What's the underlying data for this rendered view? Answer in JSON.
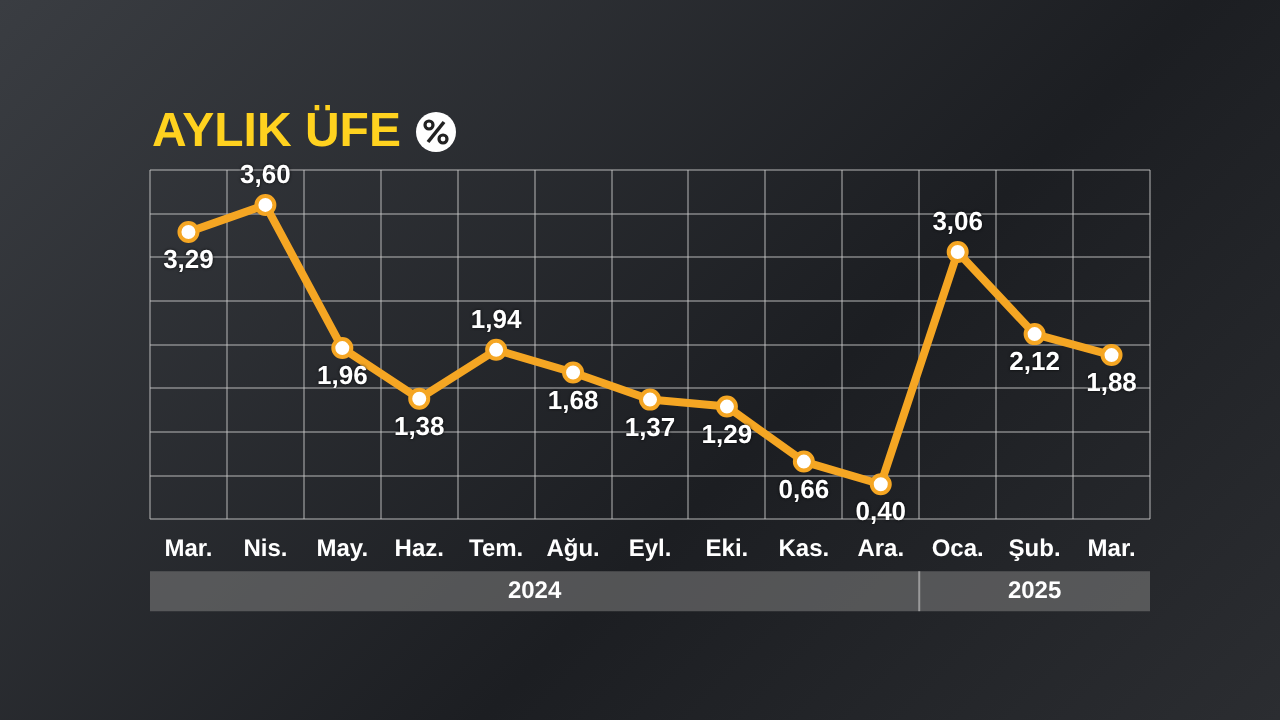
{
  "chart_data": {
    "type": "line",
    "title": "AYLIK ÜFE",
    "categories": [
      "Mar.",
      "Nis.",
      "May.",
      "Haz.",
      "Tem.",
      "Ağu.",
      "Eyl.",
      "Eki.",
      "Kas.",
      "Ara.",
      "Oca.",
      "Şub.",
      "Mar."
    ],
    "series": [
      {
        "color": "#f5a623",
        "values": [
          3.29,
          3.6,
          1.96,
          1.38,
          1.94,
          1.68,
          1.37,
          1.29,
          0.66,
          0.4,
          3.06,
          2.12,
          1.88
        ],
        "value_labels": [
          "3,29",
          "3,60",
          "1,96",
          "1,38",
          "1,94",
          "1,68",
          "1,37",
          "1,29",
          "0,66",
          "0,40",
          "3,06",
          "2,12",
          "1,88"
        ]
      }
    ],
    "annotations": [
      "2024",
      "2025"
    ],
    "grid": true,
    "marker": "circle",
    "legend": false
  }
}
